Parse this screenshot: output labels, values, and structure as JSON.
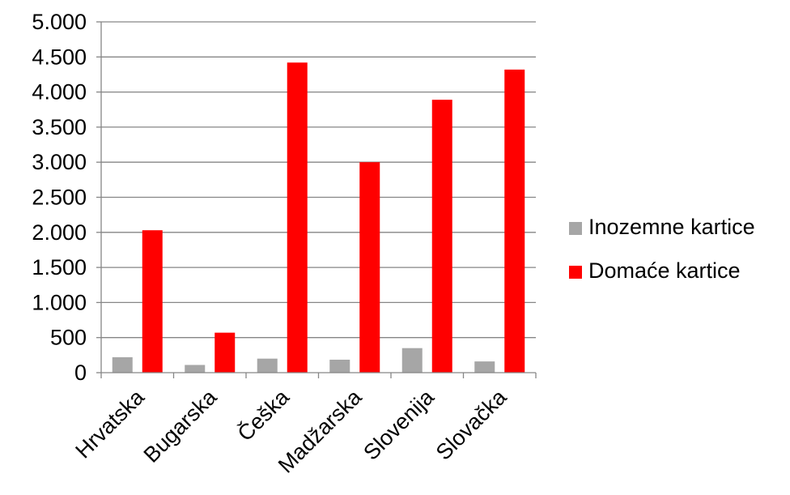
{
  "chart_data": {
    "type": "bar",
    "title": "",
    "xlabel": "",
    "ylabel": "",
    "categories": [
      "Hrvatska",
      "Bugarska",
      "Češka",
      "Madžarska",
      "Slovenija",
      "Slovačka"
    ],
    "series": [
      {
        "name": "Inozemne kartice",
        "color": "#a6a6a6",
        "values": [
          220,
          110,
          200,
          185,
          350,
          160
        ]
      },
      {
        "name": "Domaće kartice",
        "color": "#ff0000",
        "values": [
          2030,
          570,
          4420,
          3000,
          3890,
          4320
        ]
      }
    ],
    "ylim": [
      0,
      5000
    ],
    "yticks": [
      0,
      500,
      1000,
      1500,
      2000,
      2500,
      3000,
      3500,
      4000,
      4500,
      5000
    ],
    "ytick_labels": [
      "0",
      "500",
      "1.000",
      "1.500",
      "2.000",
      "2.500",
      "3.000",
      "3.500",
      "4.000",
      "4.500",
      "5.000"
    ],
    "grid": true,
    "legend_position": "right"
  }
}
